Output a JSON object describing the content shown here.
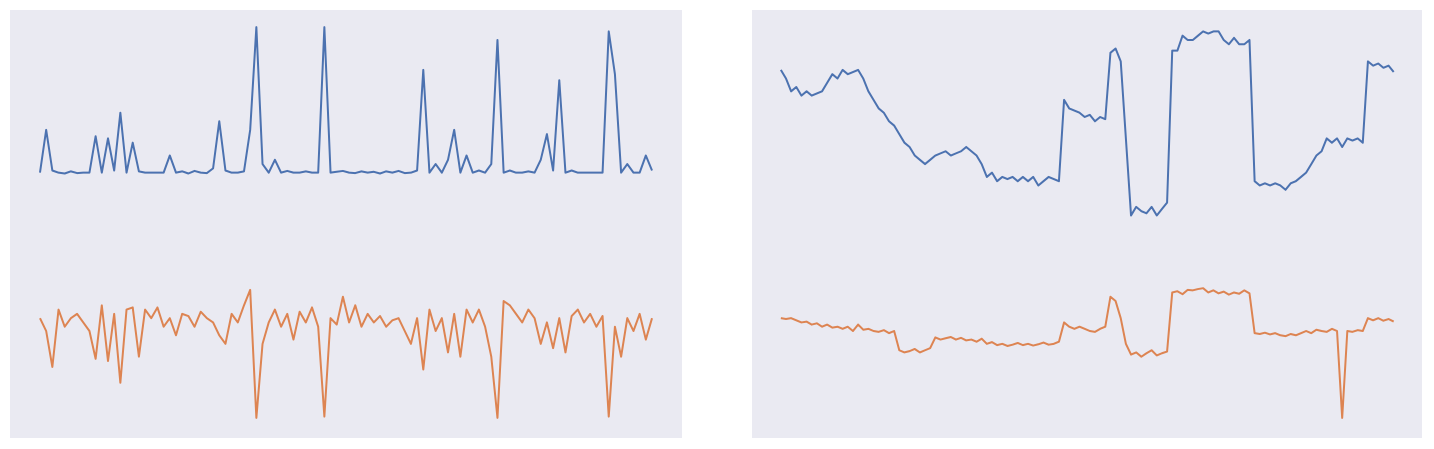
{
  "chart_data": [
    {
      "type": "line",
      "facecolor": "#eaeaf2",
      "xlim": [
        -4.85,
        103.85
      ],
      "ylim": [
        0,
        100
      ],
      "x": [
        0,
        1,
        2,
        3,
        4,
        5,
        6,
        7,
        8,
        9,
        10,
        11,
        12,
        13,
        14,
        15,
        16,
        17,
        18,
        19,
        20,
        21,
        22,
        23,
        24,
        25,
        26,
        27,
        28,
        29,
        30,
        31,
        32,
        33,
        34,
        35,
        36,
        37,
        38,
        39,
        40,
        41,
        42,
        43,
        44,
        45,
        46,
        47,
        48,
        49,
        50,
        51,
        52,
        53,
        54,
        55,
        56,
        57,
        58,
        59,
        60,
        61,
        62,
        63,
        64,
        65,
        66,
        67,
        68,
        69,
        70,
        71,
        72,
        73,
        74,
        75,
        76,
        77,
        78,
        79,
        80,
        81,
        82,
        83,
        84,
        85,
        86,
        87,
        88,
        89,
        90,
        91,
        92,
        93,
        94,
        95,
        96,
        97,
        98,
        99
      ],
      "series": [
        {
          "color": "#4c72b0",
          "values": [
            62,
            72,
            62.5,
            62,
            61.8,
            62.3,
            61.9,
            62,
            62,
            70.5,
            62,
            70,
            62.5,
            76,
            62,
            69,
            62.3,
            62,
            62,
            62,
            62,
            66,
            62,
            62.3,
            61.8,
            62.4,
            62,
            61.9,
            63,
            74,
            62.5,
            62,
            62,
            62.3,
            72,
            96,
            64,
            62,
            65,
            62,
            62.4,
            62,
            62,
            62.3,
            62,
            62,
            96,
            62,
            62.2,
            62.4,
            62,
            61.9,
            62.3,
            62,
            62.2,
            61.8,
            62.3,
            62,
            62.4,
            61.9,
            62,
            62.5,
            86,
            62,
            64,
            62,
            65,
            72,
            62,
            66,
            62,
            62.5,
            62,
            64,
            93,
            62,
            62.5,
            62,
            62,
            62.3,
            62,
            65,
            71,
            62.5,
            83.6,
            62,
            62.5,
            62,
            62,
            62,
            62,
            62,
            95,
            85,
            62,
            64,
            62,
            62,
            66,
            62.5
          ]
        },
        {
          "color": "#dd8452",
          "values": [
            28,
            25,
            16.6,
            30,
            26,
            28,
            29,
            27,
            25,
            18.5,
            31,
            18,
            29,
            12.9,
            30,
            30.5,
            19,
            30,
            28,
            30.5,
            26,
            28,
            24,
            29,
            28.5,
            26,
            29.5,
            28,
            27,
            24,
            22,
            29,
            27,
            31,
            34.6,
            4.7,
            22,
            27,
            30,
            26,
            29,
            23,
            29.5,
            27,
            30.5,
            26,
            5,
            28,
            26.5,
            33,
            27,
            31,
            26,
            29,
            27,
            28.5,
            26,
            27.5,
            28,
            25,
            22,
            28,
            16,
            30,
            25,
            28,
            20,
            29,
            19,
            30,
            27,
            30,
            26,
            19,
            4.7,
            32,
            31,
            29,
            27,
            30,
            28,
            22,
            27,
            21,
            28,
            20,
            28.5,
            30,
            27,
            29,
            26,
            28.5,
            5,
            26,
            19,
            28,
            25,
            29,
            23,
            28
          ]
        }
      ]
    },
    {
      "type": "line",
      "facecolor": "#eaeaf2",
      "xlim": [
        -5.6,
        124.5
      ],
      "ylim": [
        0,
        100
      ],
      "x": [
        0,
        1,
        2,
        3,
        4,
        5,
        6,
        7,
        8,
        9,
        10,
        11,
        12,
        13,
        14,
        15,
        16,
        17,
        18,
        19,
        20,
        21,
        22,
        23,
        24,
        25,
        26,
        27,
        28,
        29,
        30,
        31,
        32,
        33,
        34,
        35,
        36,
        37,
        38,
        39,
        40,
        41,
        42,
        43,
        44,
        45,
        46,
        47,
        48,
        49,
        50,
        51,
        52,
        53,
        54,
        55,
        56,
        57,
        58,
        59,
        60,
        61,
        62,
        63,
        64,
        65,
        66,
        67,
        68,
        69,
        70,
        71,
        72,
        73,
        74,
        75,
        76,
        77,
        78,
        79,
        80,
        81,
        82,
        83,
        84,
        85,
        86,
        87,
        88,
        89,
        90,
        91,
        92,
        93,
        94,
        95,
        96,
        97,
        98,
        99,
        100,
        101,
        102,
        103,
        104,
        105,
        106,
        107,
        108,
        109,
        110,
        111,
        112,
        113,
        114,
        115,
        116,
        117,
        118,
        119
      ],
      "series": [
        {
          "color": "#4c72b0",
          "values": [
            86,
            84,
            81,
            82,
            80,
            81,
            80,
            80.5,
            81,
            83,
            85,
            84,
            86,
            85,
            85.5,
            86,
            84,
            81,
            79,
            77,
            76,
            74,
            73,
            71,
            69,
            68,
            66,
            65,
            64,
            65,
            66,
            66.5,
            67,
            66,
            66.5,
            67,
            68,
            67,
            66,
            64,
            61,
            62,
            60,
            61,
            60.5,
            61,
            60,
            61,
            60,
            61,
            59,
            60,
            61,
            60.5,
            60,
            79,
            77,
            76.5,
            76,
            75,
            75.5,
            74,
            75,
            74.5,
            90,
            91,
            88,
            70,
            52,
            54,
            53,
            52.5,
            54,
            52,
            53.5,
            55,
            90.5,
            90.5,
            94,
            93,
            93,
            94,
            95,
            94.5,
            95,
            95,
            93,
            92,
            93.5,
            92,
            92,
            93,
            60,
            59,
            59.5,
            59,
            59.5,
            59,
            58,
            59.5,
            60,
            61,
            62,
            64,
            66,
            67,
            70,
            69,
            70,
            68,
            70,
            69.5,
            70,
            69,
            88,
            87,
            87.5,
            86.5,
            87,
            85.5
          ]
        },
        {
          "color": "#dd8452",
          "values": [
            28,
            27.8,
            28,
            27.5,
            27,
            27.2,
            26.5,
            26.8,
            26,
            26.5,
            25.8,
            26,
            25.5,
            26,
            25,
            26.5,
            25.3,
            25.5,
            25,
            24.8,
            25.2,
            24.5,
            25,
            20.5,
            20,
            20.3,
            20.8,
            20,
            20.5,
            21,
            23.5,
            23,
            23.3,
            23.6,
            23,
            23.4,
            22.8,
            23,
            22.5,
            23.2,
            22,
            22.4,
            21.7,
            22,
            21.5,
            21.8,
            22.2,
            21.7,
            22,
            21.6,
            21.9,
            22.3,
            21.8,
            22,
            22.5,
            27,
            26,
            25.5,
            26,
            25.5,
            25,
            24.8,
            25.5,
            26,
            33,
            32,
            28,
            22,
            19.5,
            20,
            19,
            19.8,
            20.5,
            19.3,
            19.8,
            20.2,
            34,
            34.3,
            33.6,
            34.6,
            34.5,
            34.8,
            35,
            34,
            34.5,
            33.8,
            34.2,
            33.5,
            34,
            33.7,
            34.5,
            33.8,
            24.5,
            24.3,
            24.6,
            24.2,
            24.5,
            24,
            23.8,
            24.3,
            24,
            24.5,
            25,
            24.5,
            25.3,
            25,
            24.8,
            25.5,
            25,
            4.7,
            25,
            24.8,
            25.2,
            25,
            28,
            27.5,
            28,
            27.4,
            27.8,
            27.2
          ]
        }
      ]
    }
  ]
}
